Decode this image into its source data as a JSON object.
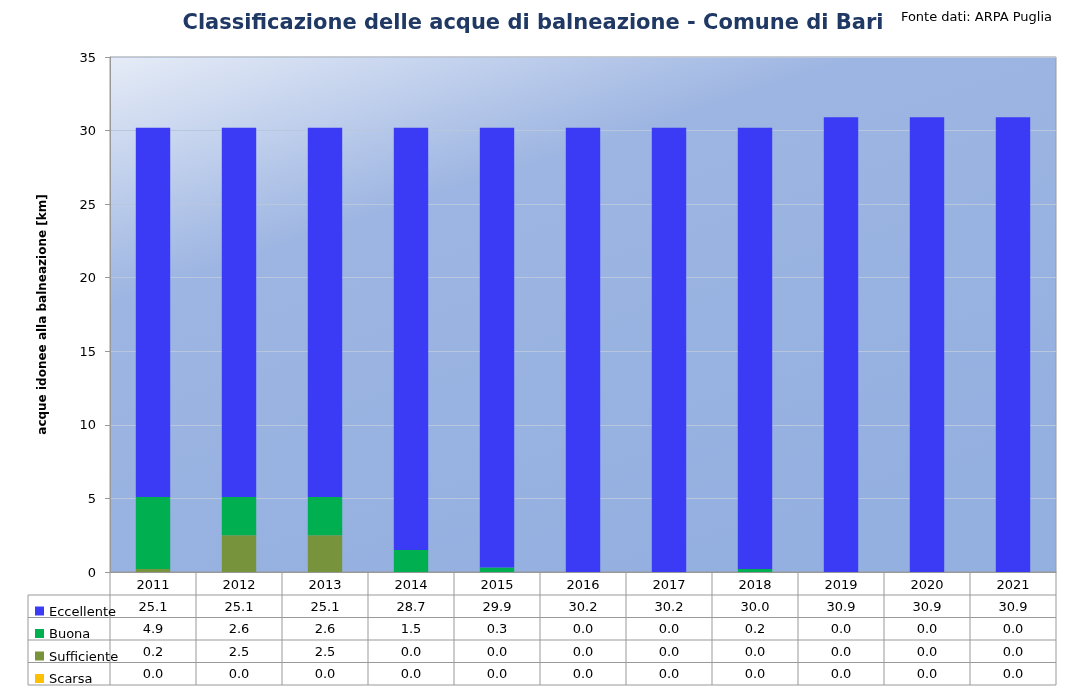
{
  "chart_data": {
    "type": "bar",
    "title": "Classificazione delle acque di balneazione - Comune di Bari",
    "ylabel": "acque idonee alla balneazione [km]",
    "annotations": [
      "Fonte dati: ARPA Puglia"
    ],
    "categories": [
      "2011",
      "2012",
      "2013",
      "2014",
      "2015",
      "2016",
      "2017",
      "2018",
      "2019",
      "2020",
      "2021"
    ],
    "stacked": true,
    "ylim": [
      0,
      35
    ],
    "yticks": [
      0,
      5,
      10,
      15,
      20,
      25,
      30,
      35
    ],
    "grid": "y",
    "legend": "bottom",
    "series": [
      {
        "name": "Scarsa",
        "color": "#ffc000",
        "values": [
          0,
          0,
          0,
          0,
          0,
          0,
          0,
          0,
          0,
          0,
          0
        ],
        "value_labels": [
          "0.0",
          "0.0",
          "0.0",
          "0.0",
          "0.0",
          "0.0",
          "0.0",
          "0.0",
          "0.0",
          "0.0",
          "0.0"
        ]
      },
      {
        "name": "Sufficiente",
        "color": "#77933c",
        "values": [
          0.2,
          2.5,
          2.5,
          0,
          0,
          0,
          0,
          0,
          0,
          0,
          0
        ],
        "value_labels": [
          "0.2",
          "2.5",
          "2.5",
          "0.0",
          "0.0",
          "0.0",
          "0.0",
          "0.0",
          "0.0",
          "0.0",
          "0.0"
        ]
      },
      {
        "name": "Buona",
        "color": "#00b050",
        "values": [
          4.9,
          2.6,
          2.6,
          1.5,
          0.3,
          0,
          0,
          0.2,
          0,
          0,
          0
        ],
        "value_labels": [
          "4.9",
          "2.6",
          "2.6",
          "1.5",
          "0.3",
          "0.0",
          "0.0",
          "0.2",
          "0.0",
          "0.0",
          "0.0"
        ]
      },
      {
        "name": "Eccellente",
        "color": "#3b3bf5",
        "values": [
          25.1,
          25.1,
          25.1,
          28.7,
          29.9,
          30.2,
          30.2,
          30.0,
          30.9,
          30.9,
          30.9
        ],
        "value_labels": [
          "25.1",
          "25.1",
          "25.1",
          "28.7",
          "29.9",
          "30.2",
          "30.2",
          "30.0",
          "30.9",
          "30.9",
          "30.9"
        ]
      }
    ]
  }
}
